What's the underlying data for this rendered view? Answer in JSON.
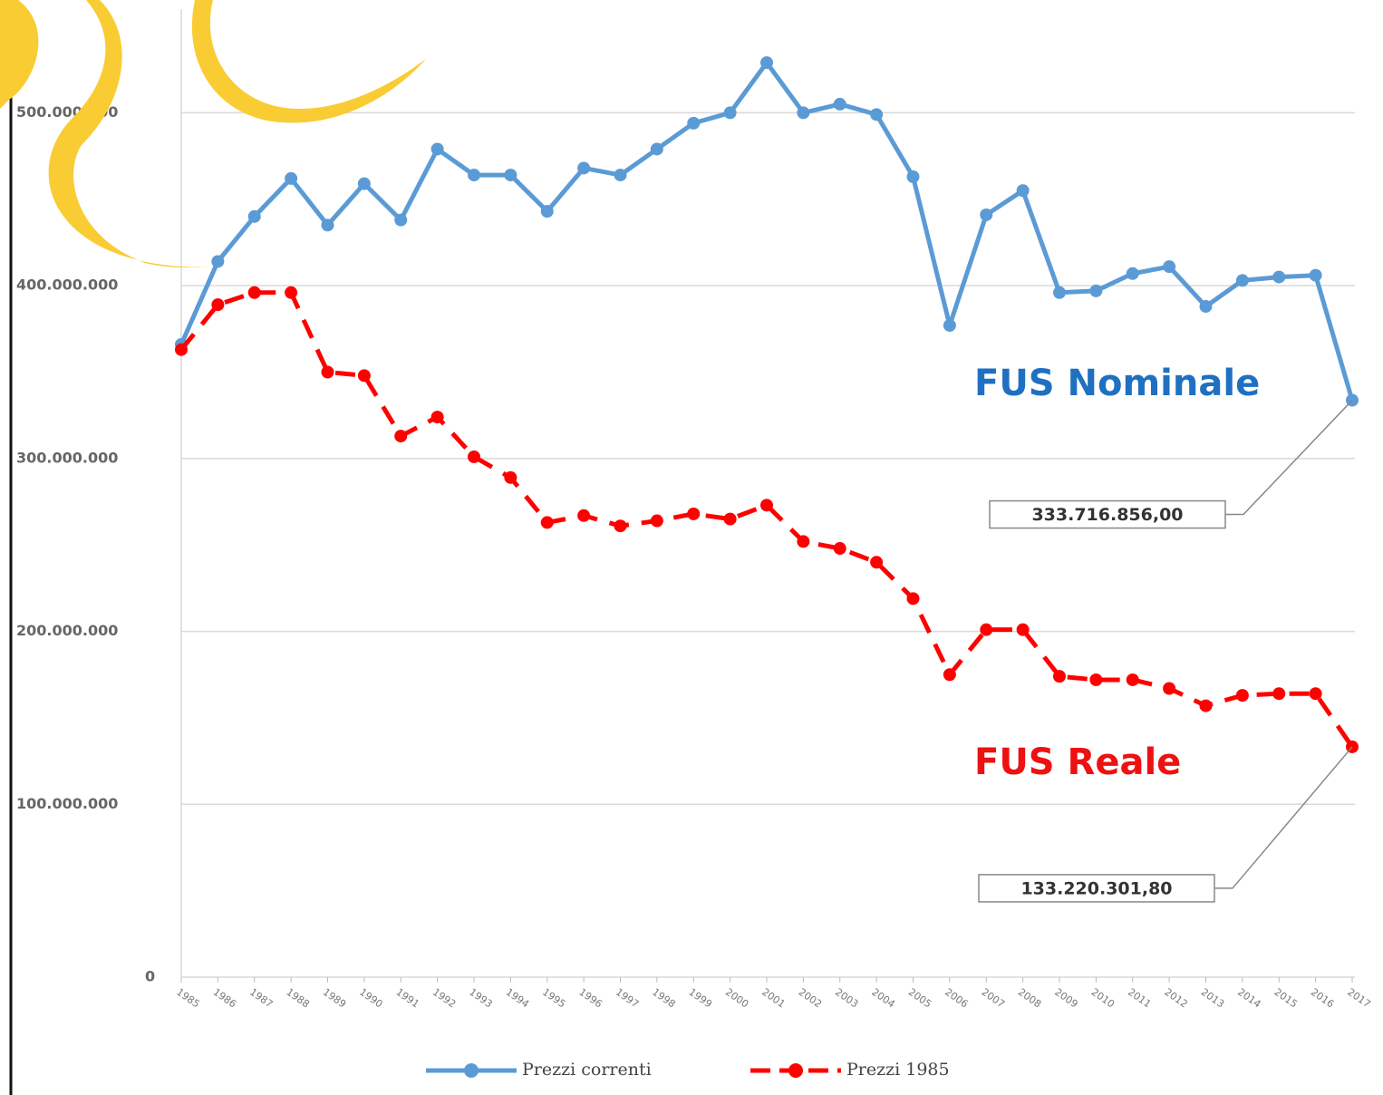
{
  "chart_data": {
    "type": "line",
    "categories": [
      "1985",
      "1986",
      "1987",
      "1988",
      "1989",
      "1990",
      "1991",
      "1992",
      "1993",
      "1994",
      "1995",
      "1996",
      "1997",
      "1998",
      "1999",
      "2000",
      "2001",
      "2002",
      "2003",
      "2004",
      "2005",
      "2006",
      "2007",
      "2008",
      "2009",
      "2010",
      "2011",
      "2012",
      "2013",
      "2014",
      "2015",
      "2016",
      "2017"
    ],
    "series": [
      {
        "name": "Prezzi correnti",
        "color": "#5b9bd5",
        "dashed": false,
        "values": [
          366000000,
          414000000,
          440000000,
          462000000,
          435000000,
          459000000,
          438000000,
          479000000,
          464000000,
          464000000,
          443000000,
          468000000,
          464000000,
          479000000,
          494000000,
          500000000,
          529000000,
          500000000,
          505000000,
          499000000,
          463000000,
          377000000,
          441000000,
          455000000,
          396000000,
          397000000,
          407000000,
          411000000,
          388000000,
          403000000,
          405000000,
          406000000,
          333716856
        ],
        "value_labels": [
          null,
          null,
          null,
          null,
          null,
          null,
          null,
          null,
          null,
          null,
          null,
          null,
          null,
          null,
          null,
          null,
          null,
          null,
          null,
          null,
          null,
          null,
          null,
          null,
          null,
          null,
          null,
          null,
          null,
          null,
          null,
          null,
          "333.716.856,00"
        ]
      },
      {
        "name": "Prezzi 1985",
        "color": "#ff0000",
        "dashed": true,
        "values": [
          363000000,
          389000000,
          396000000,
          396000000,
          350000000,
          348000000,
          313000000,
          324000000,
          301000000,
          289000000,
          263000000,
          267000000,
          261000000,
          264000000,
          268000000,
          265000000,
          273000000,
          252000000,
          248000000,
          240000000,
          219000000,
          175000000,
          201000000,
          201000000,
          174000000,
          172000000,
          172000000,
          167000000,
          157000000,
          163000000,
          164000000,
          164000000,
          133220301.8
        ],
        "value_labels": [
          null,
          null,
          null,
          null,
          null,
          null,
          null,
          null,
          null,
          null,
          null,
          null,
          null,
          null,
          null,
          null,
          null,
          null,
          null,
          null,
          null,
          null,
          null,
          null,
          null,
          null,
          null,
          null,
          null,
          null,
          null,
          null,
          "133.220.301,80"
        ]
      }
    ],
    "annotations": [
      {
        "text": "FUS Nominale",
        "color": "#1f70c1"
      },
      {
        "text": "FUS Reale",
        "color": "#ee1111"
      }
    ],
    "ylim": [
      0,
      560000000
    ],
    "yticks": [
      0,
      {
        "value": 100000000,
        "label": "100.000.000"
      },
      {
        "value": 200000000,
        "label": "200.000.000"
      },
      {
        "value": 300000000,
        "label": "300.000.000"
      },
      {
        "value": 400000000,
        "label": "400.000.000"
      },
      {
        "value": 500000000,
        "label": "500.000.000"
      }
    ],
    "grid": true,
    "legend": "bottom"
  }
}
